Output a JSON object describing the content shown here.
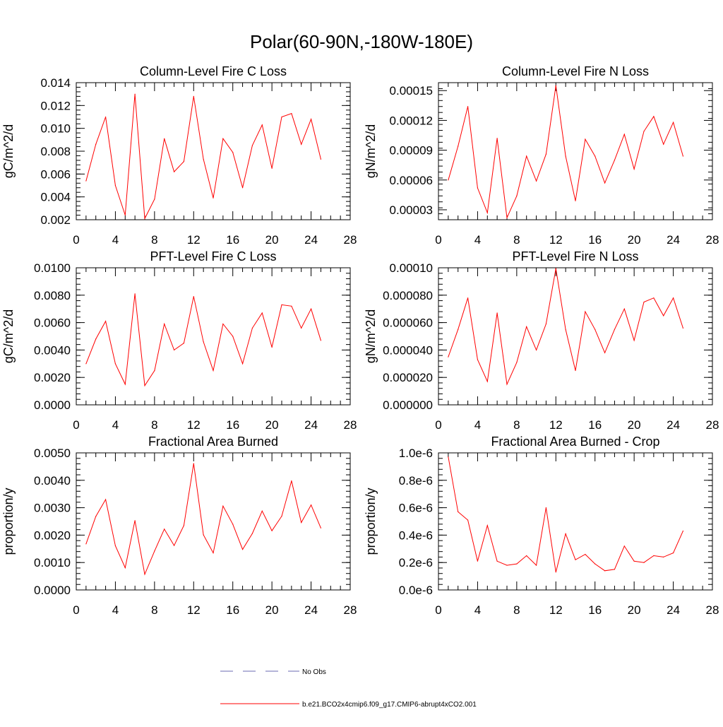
{
  "page_title": "Polar(60-90N,-180W-180E)",
  "colors": {
    "series_line": "#ff0000",
    "obs_line": "#6a6ab0",
    "axes": "#000000"
  },
  "legend": {
    "items": [
      {
        "label": "No Obs",
        "style": "dashed"
      },
      {
        "label": "b.e21.BCO2x4cmip6.f09_g17.CMIP6-abrupt4xCO2.001",
        "style": "solid"
      }
    ]
  },
  "chart_data": [
    {
      "type": "line",
      "title": "Column-Level Fire C Loss",
      "ylabel": "gC/m^2/d",
      "xlabel": "",
      "xlim": [
        0,
        28
      ],
      "xticks": [
        0,
        4,
        8,
        12,
        16,
        20,
        24,
        28
      ],
      "xtick_labels": [
        "0",
        "4",
        "8",
        "12",
        "16",
        "20",
        "24",
        "28"
      ],
      "ylim": [
        0.002,
        0.014
      ],
      "yticks": [
        0.002,
        0.004,
        0.006,
        0.008,
        0.01,
        0.012,
        0.014
      ],
      "ytick_labels": [
        "0.002",
        "0.004",
        "0.006",
        "0.008",
        "0.010",
        "0.012",
        "0.014"
      ],
      "series": [
        {
          "name": "b.e21.BCO2x4cmip6.f09_g17.CMIP6-abrupt4xCO2.001",
          "x": [
            1,
            2,
            3,
            4,
            5,
            6,
            7,
            8,
            9,
            10,
            11,
            12,
            13,
            14,
            15,
            16,
            17,
            18,
            19,
            20,
            21,
            22,
            23,
            24,
            25
          ],
          "values": [
            0.0054,
            0.0086,
            0.011,
            0.005,
            0.0024,
            0.013,
            0.0021,
            0.0038,
            0.0091,
            0.0062,
            0.0071,
            0.0128,
            0.0073,
            0.0039,
            0.0091,
            0.0079,
            0.0048,
            0.0085,
            0.0103,
            0.0065,
            0.011,
            0.0113,
            0.0086,
            0.0108,
            0.0073
          ]
        }
      ]
    },
    {
      "type": "line",
      "title": "Column-Level Fire N Loss",
      "ylabel": "gN/m^2/d",
      "xlabel": "",
      "xlim": [
        0,
        28
      ],
      "xticks": [
        0,
        4,
        8,
        12,
        16,
        20,
        24,
        28
      ],
      "xtick_labels": [
        "0",
        "4",
        "8",
        "12",
        "16",
        "20",
        "24",
        "28"
      ],
      "ylim": [
        2e-05,
        0.000158
      ],
      "yticks": [
        3e-05,
        6e-05,
        9e-05,
        0.00012,
        0.00015
      ],
      "ytick_labels": [
        "0.00003",
        "0.00006",
        "0.00009",
        "0.00012",
        "0.00015"
      ],
      "series": [
        {
          "name": "b.e21.BCO2x4cmip6.f09_g17.CMIP6-abrupt4xCO2.001",
          "x": [
            1,
            2,
            3,
            4,
            5,
            6,
            7,
            8,
            9,
            10,
            11,
            12,
            13,
            14,
            15,
            16,
            17,
            18,
            19,
            20,
            21,
            22,
            23,
            24,
            25
          ],
          "values": [
            6e-05,
            9.4e-05,
            0.000134,
            5.2e-05,
            2.7e-05,
            0.000102,
            2.2e-05,
            4.4e-05,
            8.4e-05,
            5.9e-05,
            8.6e-05,
            0.000155,
            8.4e-05,
            3.9e-05,
            0.000101,
            8.4e-05,
            5.7e-05,
            8e-05,
            0.000106,
            7.1e-05,
            0.000109,
            0.000124,
            9.6e-05,
            0.000118,
            8.4e-05
          ]
        }
      ]
    },
    {
      "type": "line",
      "title": "PFT-Level Fire C Loss",
      "ylabel": "gC/m^2/d",
      "xlabel": "",
      "xlim": [
        0,
        28
      ],
      "xticks": [
        0,
        4,
        8,
        12,
        16,
        20,
        24,
        28
      ],
      "xtick_labels": [
        "0",
        "4",
        "8",
        "12",
        "16",
        "20",
        "24",
        "28"
      ],
      "ylim": [
        0,
        0.01
      ],
      "yticks": [
        0,
        0.002,
        0.004,
        0.006,
        0.008,
        0.01
      ],
      "ytick_labels": [
        "0.0000",
        "0.0020",
        "0.0040",
        "0.0060",
        "0.0080",
        "0.0100"
      ],
      "series": [
        {
          "name": "b.e21.BCO2x4cmip6.f09_g17.CMIP6-abrupt4xCO2.001",
          "x": [
            1,
            2,
            3,
            4,
            5,
            6,
            7,
            8,
            9,
            10,
            11,
            12,
            13,
            14,
            15,
            16,
            17,
            18,
            19,
            20,
            21,
            22,
            23,
            24,
            25
          ],
          "values": [
            0.003,
            0.0048,
            0.0061,
            0.003,
            0.0015,
            0.0081,
            0.0014,
            0.0025,
            0.0059,
            0.004,
            0.0045,
            0.0079,
            0.0046,
            0.0025,
            0.0059,
            0.005,
            0.003,
            0.0056,
            0.0067,
            0.0042,
            0.0073,
            0.0072,
            0.0056,
            0.007,
            0.0047
          ]
        }
      ]
    },
    {
      "type": "line",
      "title": "PFT-Level Fire N Loss",
      "ylabel": "gN/m^2/d",
      "xlabel": "",
      "xlim": [
        0,
        28
      ],
      "xticks": [
        0,
        4,
        8,
        12,
        16,
        20,
        24,
        28
      ],
      "xtick_labels": [
        "0",
        "4",
        "8",
        "12",
        "16",
        "20",
        "24",
        "28"
      ],
      "ylim": [
        0,
        0.0001
      ],
      "yticks": [
        0,
        2e-05,
        4e-05,
        6e-05,
        8e-05,
        0.0001
      ],
      "ytick_labels": [
        "0.000000",
        "0.000020",
        "0.000040",
        "0.000060",
        "0.000080",
        "0.00010"
      ],
      "series": [
        {
          "name": "b.e21.BCO2x4cmip6.f09_g17.CMIP6-abrupt4xCO2.001",
          "x": [
            1,
            2,
            3,
            4,
            5,
            6,
            7,
            8,
            9,
            10,
            11,
            12,
            13,
            14,
            15,
            16,
            17,
            18,
            19,
            20,
            21,
            22,
            23,
            24,
            25
          ],
          "values": [
            3.5e-05,
            5.5e-05,
            7.8e-05,
            3.3e-05,
            1.7e-05,
            6.7e-05,
            1.5e-05,
            3.1e-05,
            5.7e-05,
            4e-05,
            5.9e-05,
            9.95e-05,
            5.5e-05,
            2.5e-05,
            6.8e-05,
            5.5e-05,
            3.8e-05,
            5.5e-05,
            7e-05,
            4.7e-05,
            7.5e-05,
            7.8e-05,
            6.5e-05,
            7.8e-05,
            5.6e-05
          ]
        }
      ]
    },
    {
      "type": "line",
      "title": "Fractional Area Burned",
      "ylabel": "proportion/y",
      "xlabel": "",
      "xlim": [
        0,
        28
      ],
      "xticks": [
        0,
        4,
        8,
        12,
        16,
        20,
        24,
        28
      ],
      "xtick_labels": [
        "0",
        "4",
        "8",
        "12",
        "16",
        "20",
        "24",
        "28"
      ],
      "ylim": [
        0,
        0.005
      ],
      "yticks": [
        0,
        0.001,
        0.002,
        0.003,
        0.004,
        0.005
      ],
      "ytick_labels": [
        "0.0000",
        "0.0010",
        "0.0020",
        "0.0030",
        "0.0040",
        "0.0050"
      ],
      "series": [
        {
          "name": "b.e21.BCO2x4cmip6.f09_g17.CMIP6-abrupt4xCO2.001",
          "x": [
            1,
            2,
            3,
            4,
            5,
            6,
            7,
            8,
            9,
            10,
            11,
            12,
            13,
            14,
            15,
            16,
            17,
            18,
            19,
            20,
            21,
            22,
            23,
            24,
            25
          ],
          "values": [
            0.00168,
            0.00268,
            0.0033,
            0.00161,
            0.00081,
            0.00253,
            0.00057,
            0.00142,
            0.00222,
            0.00162,
            0.00235,
            0.00461,
            0.00201,
            0.00135,
            0.00306,
            0.0024,
            0.00148,
            0.00206,
            0.00288,
            0.00216,
            0.00269,
            0.00398,
            0.00246,
            0.0031,
            0.00226
          ]
        }
      ]
    },
    {
      "type": "line",
      "title": "Fractional Area Burned - Crop",
      "ylabel": "proportion/y",
      "xlabel": "",
      "xlim": [
        0,
        28
      ],
      "xticks": [
        0,
        4,
        8,
        12,
        16,
        20,
        24,
        28
      ],
      "xtick_labels": [
        "0",
        "4",
        "8",
        "12",
        "16",
        "20",
        "24",
        "28"
      ],
      "ylim": [
        0,
        1e-06
      ],
      "yticks": [
        0,
        2e-07,
        4e-07,
        6e-07,
        8e-07,
        1e-06
      ],
      "ytick_labels": [
        "0.0e-6",
        "0.2e-6",
        "0.4e-6",
        "0.6e-6",
        "0.8e-6",
        "1.0e-6"
      ],
      "series": [
        {
          "name": "b.e21.BCO2x4cmip6.f09_g17.CMIP6-abrupt4xCO2.001",
          "x": [
            1,
            2,
            3,
            4,
            5,
            6,
            7,
            8,
            9,
            10,
            11,
            12,
            13,
            14,
            15,
            16,
            17,
            18,
            19,
            20,
            21,
            22,
            23,
            24,
            25
          ],
          "values": [
            9.7e-07,
            5.7e-07,
            5.1e-07,
            2.1e-07,
            4.7e-07,
            2.1e-07,
            1.8e-07,
            1.9e-07,
            2.5e-07,
            1.8e-07,
            6e-07,
            1.3e-07,
            4.1e-07,
            2.2e-07,
            2.6e-07,
            1.9e-07,
            1.4e-07,
            1.5e-07,
            3.2e-07,
            2.1e-07,
            2e-07,
            2.5e-07,
            2.4e-07,
            2.7e-07,
            4.3e-07
          ]
        }
      ]
    }
  ]
}
